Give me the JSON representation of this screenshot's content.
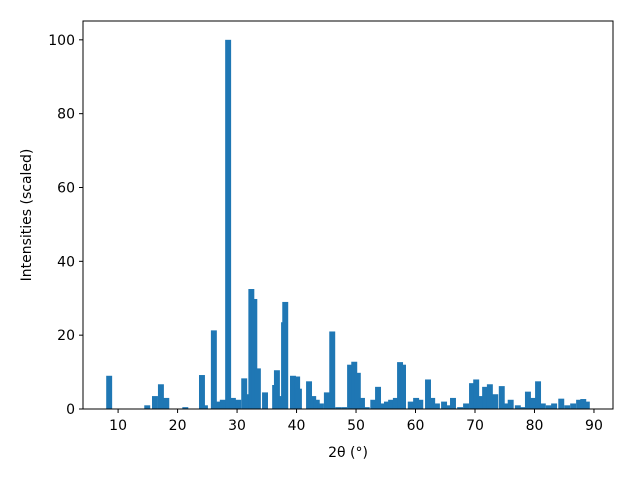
{
  "chart_data": {
    "type": "bar",
    "x_label": "2θ (°)",
    "y_label": "Intensities (scaled)",
    "x": [
      8.5,
      14.9,
      16.2,
      17.2,
      18.1,
      21.3,
      24.1,
      24.6,
      26.1,
      27,
      27.6,
      28.5,
      29.3,
      30.2,
      31.2,
      31.8,
      32.4,
      32.9,
      33.5,
      34.7,
      36.4,
      36.7,
      37.4,
      37.9,
      38.1,
      39.4,
      40.1,
      40.4,
      42.1,
      42.8,
      43.4,
      44.1,
      45.1,
      46,
      47,
      48,
      49,
      49.7,
      50.3,
      51,
      51.8,
      52.9,
      53.7,
      54.5,
      55.2,
      55.9,
      56.7,
      57.4,
      57.9,
      59.2,
      60.1,
      60.8,
      62.1,
      62.8,
      63.6,
      64.8,
      65.6,
      66.3,
      67.5,
      68.5,
      69.5,
      70.2,
      70.8,
      71.7,
      72.5,
      73.4,
      74.5,
      75.2,
      76,
      77.2,
      78.1,
      78.9,
      79.7,
      80.6,
      81.4,
      82.4,
      83.3,
      84.5,
      85.5,
      86.5,
      87.5,
      88.2,
      88.8
    ],
    "values": [
      9,
      1,
      3.5,
      6.7,
      3,
      0.5,
      9.2,
      1,
      21.3,
      2,
      2.5,
      100,
      3,
      2.5,
      8.3,
      4,
      32.5,
      29.8,
      11,
      4.5,
      6.5,
      10.5,
      3.5,
      23.5,
      29,
      9,
      8.8,
      5.5,
      7.5,
      3.5,
      2.5,
      1.5,
      4.5,
      21,
      0.5,
      0.5,
      12,
      12.8,
      9.8,
      3,
      0.5,
      2.5,
      6,
      1.5,
      2,
      2.5,
      3,
      12.7,
      12,
      2,
      3,
      2.5,
      8,
      3,
      1.5,
      2,
      1,
      3,
      0.5,
      1.5,
      7,
      8,
      3.5,
      6,
      6.7,
      4,
      6.2,
      1.5,
      2.5,
      1,
      0.5,
      4.7,
      3,
      7.5,
      1.5,
      1,
      1.5,
      2.8,
      1,
      1.5,
      2.5,
      2.7,
      2
    ],
    "color": "#1f77b4",
    "xlim": [
      4.1,
      93.2
    ],
    "xticks": [
      10,
      20,
      30,
      40,
      50,
      60,
      70,
      80,
      90
    ],
    "ylim": [
      0,
      105.1
    ],
    "yticks": [
      0,
      20,
      40,
      60,
      80,
      100
    ],
    "grid": false
  }
}
